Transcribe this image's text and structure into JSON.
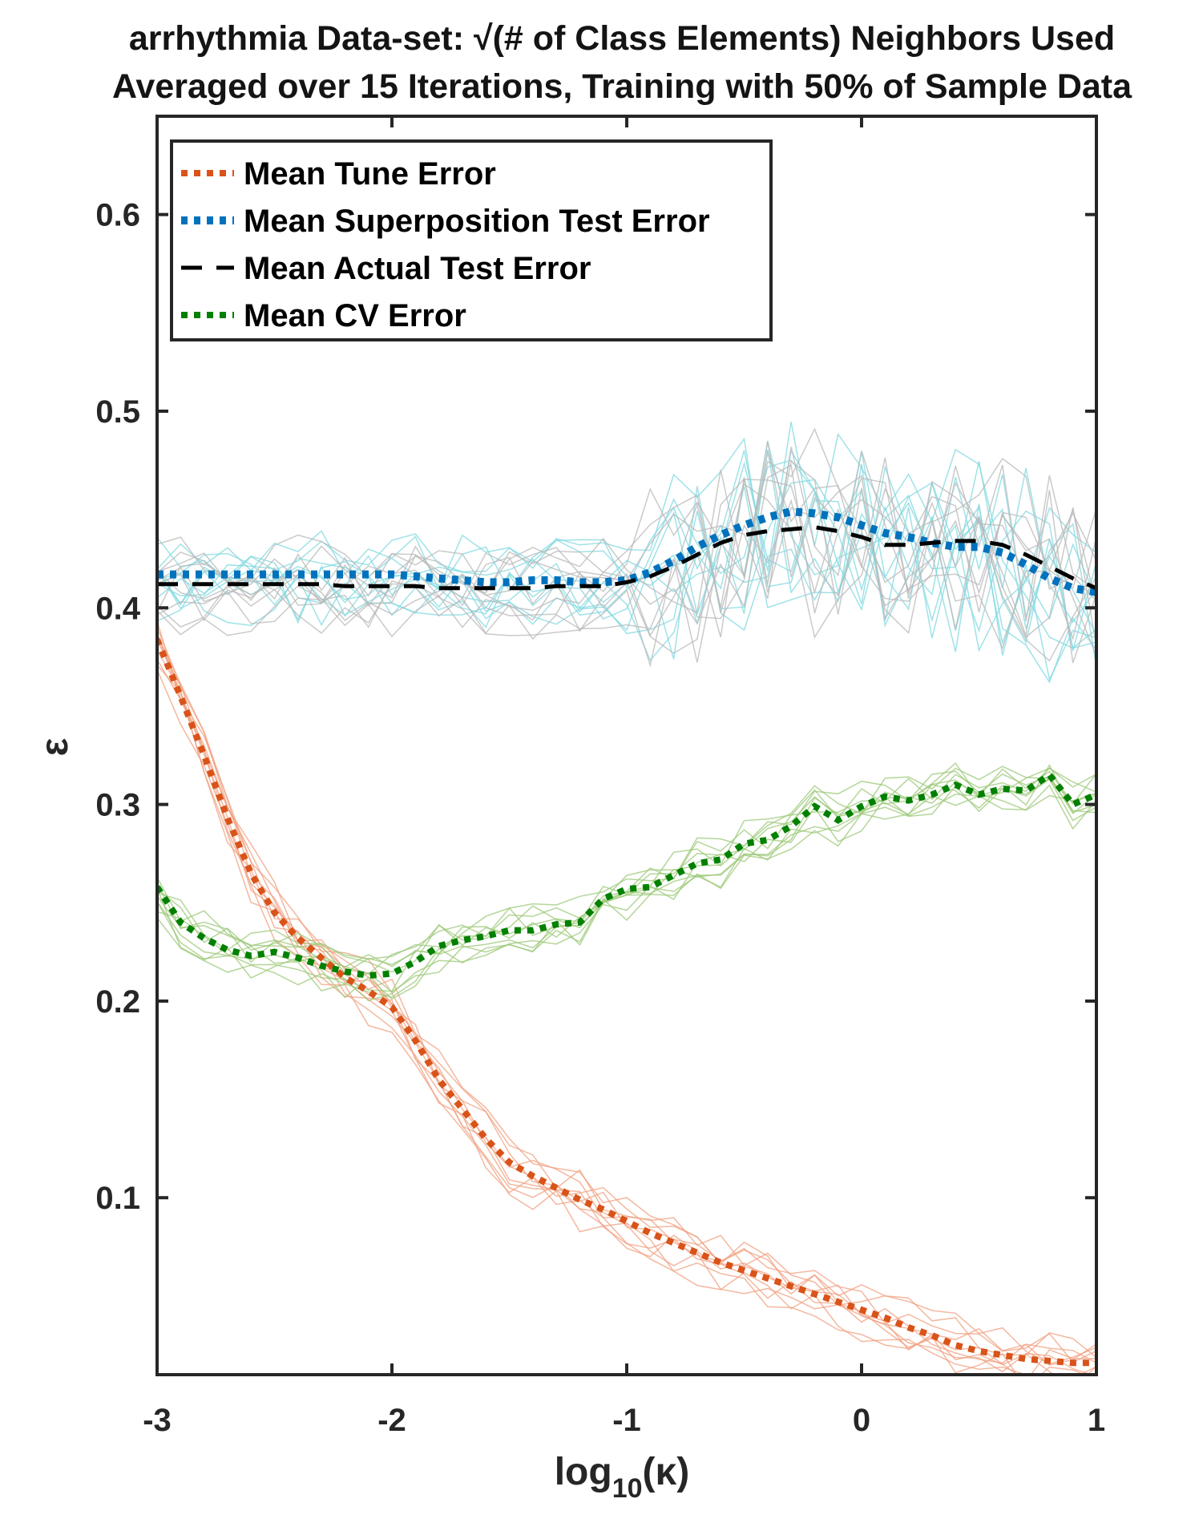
{
  "chart_data": {
    "type": "line",
    "title": "arrhythmia Data-set: √(# of Class Elements) Neighbors Used",
    "subtitle": "Averaged over 15 Iterations, Training with 50% of Sample Data",
    "xlabel_base": "log",
    "xlabel_sub": "10",
    "xlabel_arg": "(κ)",
    "ylabel": "ε",
    "xlim": [
      -3,
      1
    ],
    "ylim": [
      0.01,
      0.65
    ],
    "xticks": [
      -3,
      -2,
      -1,
      0,
      1
    ],
    "xtick_labels": [
      "-3",
      "-2",
      "-1",
      "0",
      "1"
    ],
    "yticks": [
      0.1,
      0.2,
      0.3,
      0.4,
      0.5,
      0.6
    ],
    "ytick_labels": [
      "0.1",
      "0.2",
      "0.3",
      "0.4",
      "0.5",
      "0.6"
    ],
    "grid": false,
    "legend_position": "top-left",
    "colors": {
      "tune": "#D95319",
      "superposition": "#0072BD",
      "actual": "#000000",
      "cv": "#008000",
      "tune_individual": "#F0A080",
      "superposition_individual": "#7FD8E0",
      "actual_individual": "#B8B8B8",
      "cv_individual": "#9CC878"
    },
    "x": [
      -3.0,
      -2.9,
      -2.8,
      -2.7,
      -2.6,
      -2.5,
      -2.4,
      -2.3,
      -2.2,
      -2.1,
      -2.0,
      -1.9,
      -1.8,
      -1.7,
      -1.6,
      -1.5,
      -1.4,
      -1.3,
      -1.2,
      -1.1,
      -1.0,
      -0.9,
      -0.8,
      -0.7,
      -0.6,
      -0.5,
      -0.4,
      -0.3,
      -0.2,
      -0.1,
      0.0,
      0.1,
      0.2,
      0.3,
      0.4,
      0.5,
      0.6,
      0.7,
      0.8,
      0.9,
      1.0
    ],
    "series": [
      {
        "name": "Mean Tune Error",
        "key": "tune",
        "style": "dotted",
        "values": [
          0.384,
          0.355,
          0.325,
          0.293,
          0.265,
          0.245,
          0.232,
          0.222,
          0.212,
          0.205,
          0.197,
          0.18,
          0.16,
          0.145,
          0.13,
          0.118,
          0.111,
          0.105,
          0.099,
          0.094,
          0.088,
          0.082,
          0.077,
          0.072,
          0.067,
          0.063,
          0.059,
          0.055,
          0.051,
          0.047,
          0.043,
          0.039,
          0.034,
          0.03,
          0.025,
          0.022,
          0.02,
          0.018,
          0.017,
          0.016,
          0.016
        ]
      },
      {
        "name": "Mean Superposition Test Error",
        "key": "superposition",
        "style": "dotted",
        "values": [
          0.417,
          0.417,
          0.417,
          0.417,
          0.417,
          0.417,
          0.417,
          0.417,
          0.417,
          0.417,
          0.417,
          0.416,
          0.415,
          0.414,
          0.413,
          0.413,
          0.414,
          0.414,
          0.413,
          0.413,
          0.414,
          0.418,
          0.424,
          0.431,
          0.437,
          0.442,
          0.446,
          0.449,
          0.448,
          0.446,
          0.442,
          0.438,
          0.436,
          0.433,
          0.431,
          0.431,
          0.428,
          0.422,
          0.415,
          0.41,
          0.408
        ]
      },
      {
        "name": "Mean Actual Test Error",
        "key": "actual",
        "style": "dashed",
        "values": [
          0.412,
          0.412,
          0.412,
          0.412,
          0.412,
          0.412,
          0.412,
          0.412,
          0.411,
          0.411,
          0.411,
          0.411,
          0.41,
          0.41,
          0.41,
          0.41,
          0.41,
          0.411,
          0.411,
          0.411,
          0.413,
          0.416,
          0.421,
          0.427,
          0.433,
          0.437,
          0.439,
          0.44,
          0.441,
          0.439,
          0.436,
          0.432,
          0.432,
          0.433,
          0.434,
          0.434,
          0.432,
          0.427,
          0.421,
          0.415,
          0.41
        ]
      },
      {
        "name": "Mean CV Error",
        "key": "cv",
        "style": "dotted",
        "values": [
          0.258,
          0.24,
          0.232,
          0.226,
          0.223,
          0.225,
          0.222,
          0.218,
          0.215,
          0.213,
          0.214,
          0.22,
          0.228,
          0.231,
          0.233,
          0.236,
          0.236,
          0.239,
          0.24,
          0.252,
          0.257,
          0.258,
          0.264,
          0.27,
          0.272,
          0.28,
          0.282,
          0.289,
          0.299,
          0.292,
          0.299,
          0.304,
          0.302,
          0.305,
          0.31,
          0.305,
          0.308,
          0.307,
          0.315,
          0.3,
          0.305
        ]
      }
    ]
  }
}
